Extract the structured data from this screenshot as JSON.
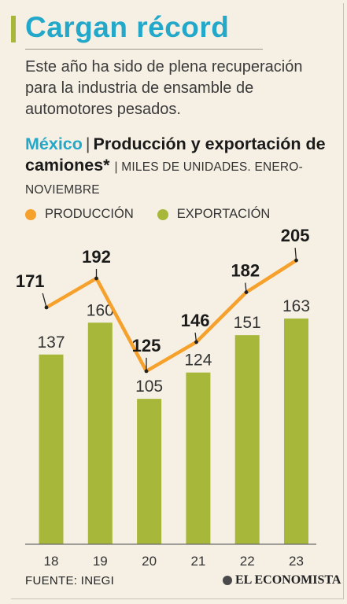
{
  "header": {
    "title": "Cargan récord",
    "intro": "Este año ha sido de plena recuperación para la industria de ensamble de automotores pesados.",
    "country": "México",
    "separator": "|",
    "headline": "Producción y exportación de camiones*",
    "unit": "| MILES DE UNIDADES. ENERO-NOVIEMBRE"
  },
  "colors": {
    "title": "#23a8c9",
    "accent_bar": "#a7b73a",
    "production": "#f5a12c",
    "export": "#a7b73a",
    "background": "#f6f0e4"
  },
  "chart_data": {
    "type": "bar",
    "categories": [
      "18",
      "19",
      "20",
      "21",
      "22",
      "23"
    ],
    "series": [
      {
        "name": "EXPORTACIÓN",
        "type": "bar",
        "values": [
          137,
          160,
          105,
          124,
          151,
          163
        ]
      },
      {
        "name": "PRODUCCIÓN",
        "type": "line",
        "values": [
          171,
          192,
          125,
          146,
          182,
          205
        ]
      }
    ],
    "ylim": [
      0,
      230
    ],
    "grid": false,
    "legend_position": "top-left"
  },
  "footer": {
    "source": "FUENTE: INEGI",
    "brand": "EL ECONOMISTA",
    "brand_icon": "economista-logo-icon"
  }
}
